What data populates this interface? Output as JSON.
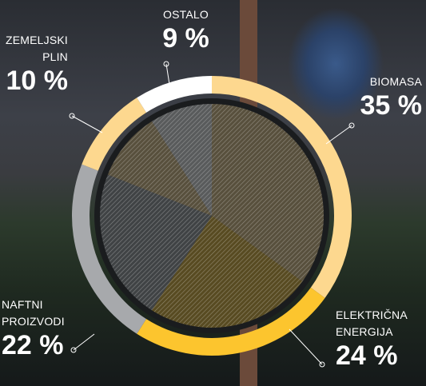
{
  "chart_data": {
    "type": "donut",
    "categories": [
      "BIOMASA",
      "ELEKTRIČNA ENERGIJA",
      "NAFTNI PROIZVODI",
      "ZEMELJSKI PLIN",
      "OSTALO"
    ],
    "values": [
      35,
      24,
      22,
      10,
      9
    ],
    "value_labels": [
      "35 %",
      "24 %",
      "22 %",
      "10 %",
      "9 %"
    ],
    "colors": [
      "#fdd88f",
      "#fcc52e",
      "#a7a9ac",
      "#fdd88f",
      "#ffffff"
    ]
  }
}
